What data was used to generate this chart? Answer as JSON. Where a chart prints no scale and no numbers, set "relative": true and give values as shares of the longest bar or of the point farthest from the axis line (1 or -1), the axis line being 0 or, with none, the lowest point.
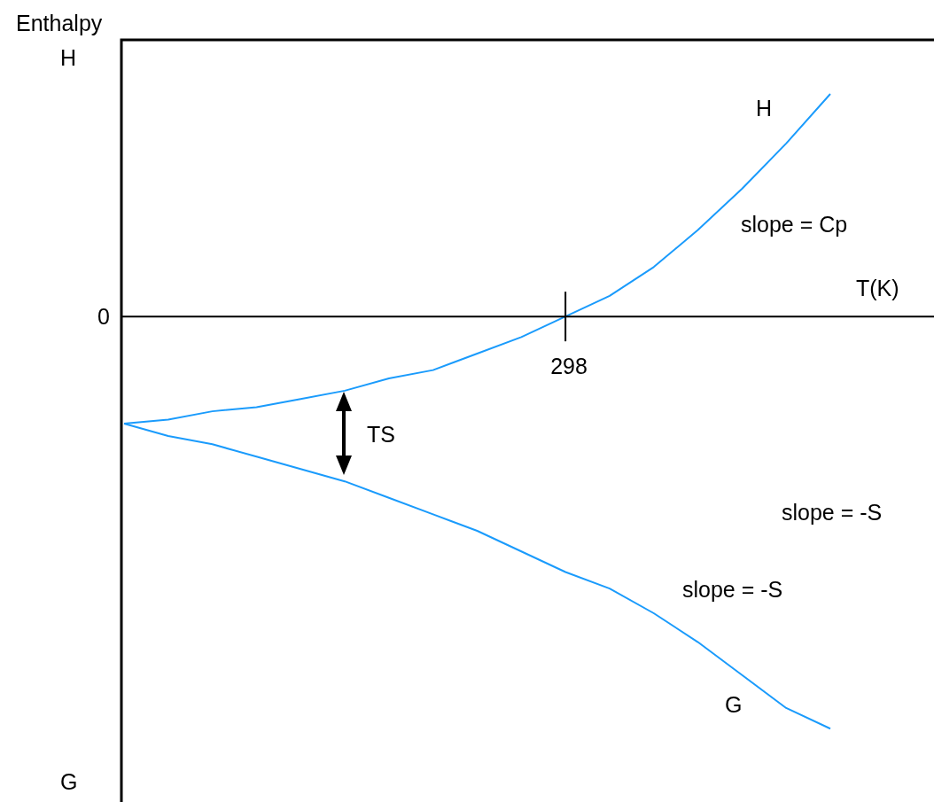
{
  "chart_data": {
    "type": "line",
    "relative": true,
    "xlabel": "T(K)",
    "ylabel": "Enthalpy",
    "categories": [
      null,
      null,
      null,
      null,
      null,
      null,
      null,
      null,
      null,
      null,
      null,
      null,
      null,
      null,
      null,
      null,
      null
    ],
    "series": [
      {
        "name": "H",
        "color": "#1a9bfc",
        "values": [
          -0.26,
          -0.25,
          -0.23,
          -0.22,
          -0.2,
          -0.18,
          -0.15,
          -0.13,
          -0.09,
          -0.05,
          0,
          0.05,
          0.12,
          0.21,
          0.31,
          0.42,
          0.54
        ]
      },
      {
        "name": "G",
        "color": "#1a9bfc",
        "values": [
          -0.26,
          -0.29,
          -0.31,
          -0.34,
          -0.37,
          -0.4,
          -0.44,
          -0.48,
          -0.52,
          -0.57,
          -0.62,
          -0.66,
          -0.72,
          -0.79,
          -0.87,
          -0.95,
          -1
        ]
      }
    ],
    "annotations": [
      "H",
      "G",
      "0",
      "298",
      "TS",
      "slope = Cp",
      "slope = -S",
      "slope = -S"
    ],
    "legend": false,
    "marker": "none",
    "line_style": "solid"
  }
}
